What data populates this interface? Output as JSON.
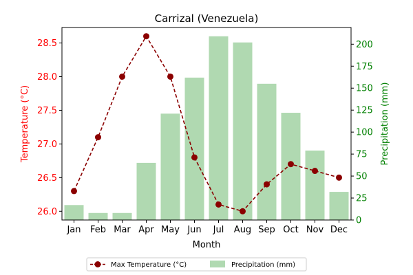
{
  "chart_data": {
    "type": "bar+line",
    "title": "Carrizal (Venezuela)",
    "xlabel": "Month",
    "ylabel_left": "Temperature (°C)",
    "ylabel_right": "Precipitation (mm)",
    "categories": [
      "Jan",
      "Feb",
      "Mar",
      "Apr",
      "May",
      "Jun",
      "Jul",
      "Aug",
      "Sep",
      "Oct",
      "Nov",
      "Dec"
    ],
    "series": [
      {
        "name": "Max Temperature (°C)",
        "type": "line",
        "axis": "left",
        "color": "#8b0000",
        "values": [
          26.3,
          27.1,
          28.0,
          28.6,
          28.0,
          26.8,
          26.1,
          26.0,
          26.4,
          26.7,
          26.6,
          26.5
        ]
      },
      {
        "name": "Precipitation (mm)",
        "type": "bar",
        "axis": "right",
        "color": "#b0d9b1",
        "values": [
          17,
          8,
          8,
          65,
          121,
          162,
          209,
          202,
          155,
          122,
          79,
          32
        ]
      }
    ],
    "ylim_left": [
      25.87,
      28.73
    ],
    "ylim_right": [
      0,
      219
    ],
    "yticks_left": [
      "26.0",
      "26.5",
      "27.0",
      "27.5",
      "28.0",
      "28.5"
    ],
    "yticks_right": [
      "0",
      "25",
      "50",
      "75",
      "100",
      "125",
      "150",
      "175",
      "200"
    ],
    "left_axis_color": "#ff0000",
    "right_axis_color": "#008000",
    "grid": false,
    "legend_position": "bottom-center"
  }
}
